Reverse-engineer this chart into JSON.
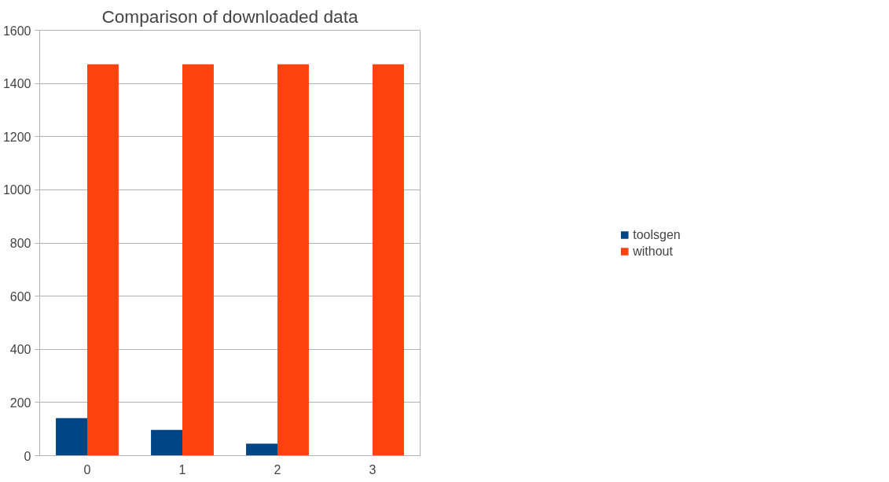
{
  "chart_data": {
    "type": "bar",
    "title": "Comparison of downloaded data",
    "categories": [
      "0",
      "1",
      "2",
      "3"
    ],
    "series": [
      {
        "name": "toolsgen",
        "color": "#004586",
        "values": [
          141,
          97,
          45,
          0
        ]
      },
      {
        "name": "without",
        "color": "#ff420e",
        "values": [
          1472,
          1472,
          1472,
          1472
        ]
      }
    ],
    "ylim": [
      0,
      1600
    ],
    "yticks": [
      0,
      200,
      400,
      600,
      800,
      1000,
      1200,
      1400,
      1600
    ],
    "grid": "y",
    "legend": "right"
  }
}
